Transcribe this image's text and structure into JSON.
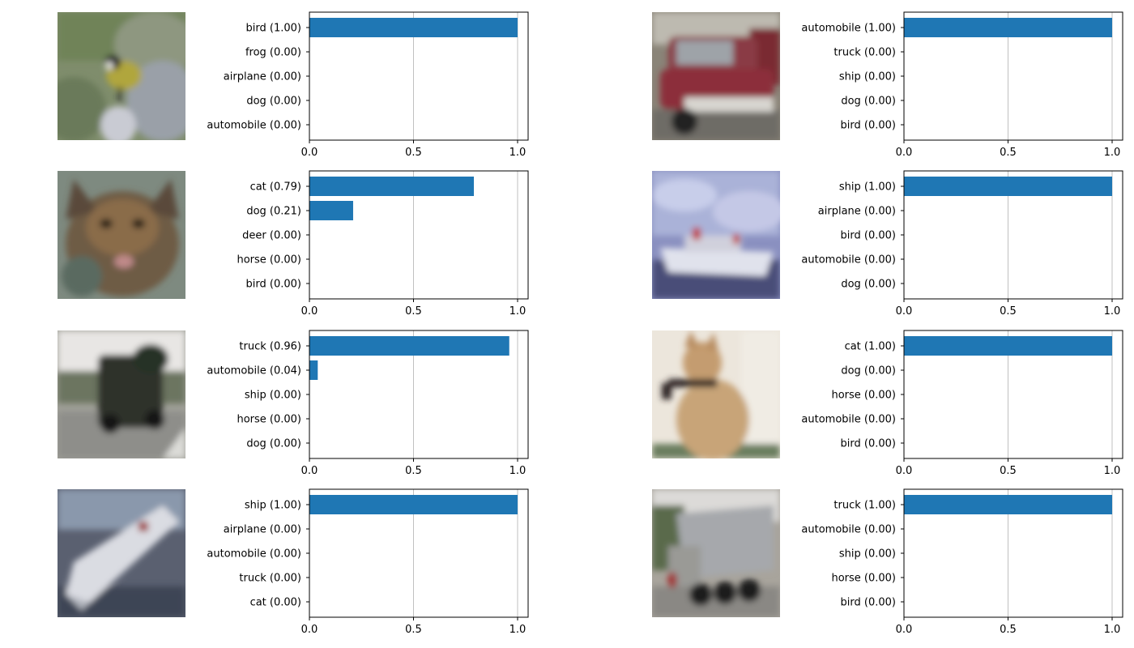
{
  "colors": {
    "bar": "#1f77b4",
    "grid": "#b0b0b0",
    "axis": "#000000"
  },
  "panels": [
    {
      "image": {
        "name": "bird-photo",
        "fill": "#768368"
      },
      "chart_data": {
        "type": "bar",
        "orientation": "horizontal",
        "categories": [
          "bird (1.00)",
          "frog (0.00)",
          "airplane (0.00)",
          "dog (0.00)",
          "automobile (0.00)"
        ],
        "values": [
          1.0,
          0.0,
          0.0,
          0.0,
          0.0
        ],
        "xlim": [
          0,
          1.0
        ],
        "xticks": [
          "0.0",
          "0.5",
          "1.0"
        ],
        "grid": "vertical"
      }
    },
    {
      "image": {
        "name": "car-photo",
        "fill": "#7a5656"
      },
      "chart_data": {
        "type": "bar",
        "orientation": "horizontal",
        "categories": [
          "automobile (1.00)",
          "truck (0.00)",
          "ship (0.00)",
          "dog (0.00)",
          "bird (0.00)"
        ],
        "values": [
          1.0,
          0.0,
          0.0,
          0.0,
          0.0
        ],
        "xlim": [
          0,
          1.0
        ],
        "xticks": [
          "0.0",
          "0.5",
          "1.0"
        ],
        "grid": "vertical"
      }
    },
    {
      "image": {
        "name": "cat-photo",
        "fill": "#6d604e"
      },
      "chart_data": {
        "type": "bar",
        "orientation": "horizontal",
        "categories": [
          "cat (0.79)",
          "dog (0.21)",
          "deer (0.00)",
          "horse (0.00)",
          "bird (0.00)"
        ],
        "values": [
          0.79,
          0.21,
          0.0,
          0.0,
          0.0
        ],
        "xlim": [
          0,
          1.0
        ],
        "xticks": [
          "0.0",
          "0.5",
          "1.0"
        ],
        "grid": "vertical"
      }
    },
    {
      "image": {
        "name": "ship-photo",
        "fill": "#7d82b0"
      },
      "chart_data": {
        "type": "bar",
        "orientation": "horizontal",
        "categories": [
          "ship (1.00)",
          "airplane (0.00)",
          "bird (0.00)",
          "automobile (0.00)",
          "dog (0.00)"
        ],
        "values": [
          1.0,
          0.0,
          0.0,
          0.0,
          0.0
        ],
        "xlim": [
          0,
          1.0
        ],
        "xticks": [
          "0.0",
          "0.5",
          "1.0"
        ],
        "grid": "vertical"
      }
    },
    {
      "image": {
        "name": "truck-photo",
        "fill": "#6e6e66"
      },
      "chart_data": {
        "type": "bar",
        "orientation": "horizontal",
        "categories": [
          "truck (0.96)",
          "automobile (0.04)",
          "ship (0.00)",
          "horse (0.00)",
          "dog (0.00)"
        ],
        "values": [
          0.96,
          0.04,
          0.0,
          0.0,
          0.0
        ],
        "xlim": [
          0,
          1.0
        ],
        "xticks": [
          "0.0",
          "0.5",
          "1.0"
        ],
        "grid": "vertical"
      }
    },
    {
      "image": {
        "name": "cat-photo-2",
        "fill": "#d2bfa2"
      },
      "chart_data": {
        "type": "bar",
        "orientation": "horizontal",
        "categories": [
          "cat (1.00)",
          "dog (0.00)",
          "horse (0.00)",
          "automobile (0.00)",
          "bird (0.00)"
        ],
        "values": [
          1.0,
          0.0,
          0.0,
          0.0,
          0.0
        ],
        "xlim": [
          0,
          1.0
        ],
        "xticks": [
          "0.0",
          "0.5",
          "1.0"
        ],
        "grid": "vertical"
      }
    },
    {
      "image": {
        "name": "ship-photo-2",
        "fill": "#5b6274"
      },
      "chart_data": {
        "type": "bar",
        "orientation": "horizontal",
        "categories": [
          "ship (1.00)",
          "airplane (0.00)",
          "automobile (0.00)",
          "truck (0.00)",
          "cat (0.00)"
        ],
        "values": [
          1.0,
          0.0,
          0.0,
          0.0,
          0.0
        ],
        "xlim": [
          0,
          1.0
        ],
        "xticks": [
          "0.0",
          "0.5",
          "1.0"
        ],
        "grid": "vertical"
      }
    },
    {
      "image": {
        "name": "truck-photo-2",
        "fill": "#8c8a86"
      },
      "chart_data": {
        "type": "bar",
        "orientation": "horizontal",
        "categories": [
          "truck (1.00)",
          "automobile (0.00)",
          "ship (0.00)",
          "horse (0.00)",
          "bird (0.00)"
        ],
        "values": [
          1.0,
          0.0,
          0.0,
          0.0,
          0.0
        ],
        "xlim": [
          0,
          1.0
        ],
        "xticks": [
          "0.0",
          "0.5",
          "1.0"
        ],
        "grid": "vertical"
      }
    }
  ]
}
